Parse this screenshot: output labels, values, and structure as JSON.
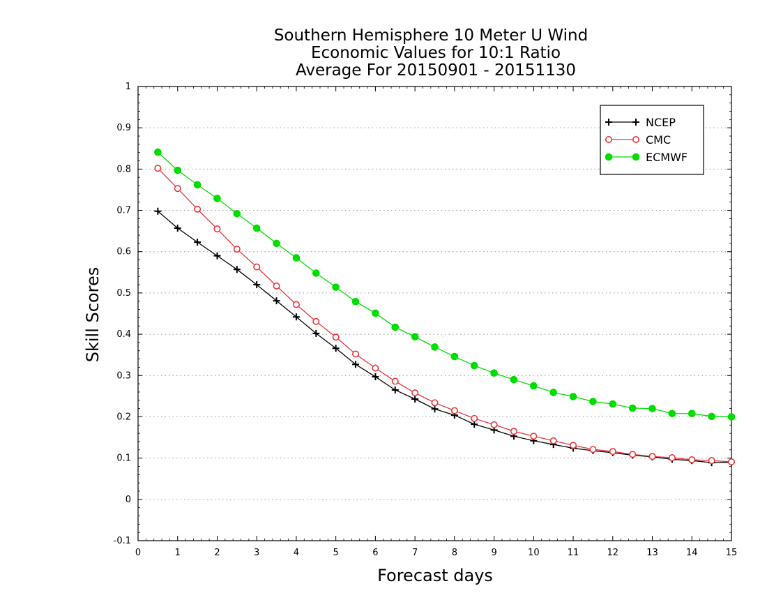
{
  "chart_data": {
    "type": "line",
    "title_lines": [
      "Southern Hemisphere 10 Meter U Wind",
      "Economic Values for 10:1 Ratio",
      "Average For 20150901 - 20151130"
    ],
    "xlabel": "Forecast days",
    "ylabel": "Skill Scores",
    "xlim": [
      0,
      15
    ],
    "ylim": [
      -0.1,
      1
    ],
    "x_ticks": [
      0,
      1,
      2,
      3,
      4,
      5,
      6,
      7,
      8,
      9,
      10,
      11,
      12,
      13,
      14,
      15
    ],
    "x_tick_labels": [
      "0",
      "1",
      "2",
      "3",
      "4",
      "5",
      "6",
      "7",
      "8",
      "9",
      "10",
      "11",
      "12",
      "13",
      "14",
      "15"
    ],
    "y_ticks": [
      -0.1,
      0,
      0.1,
      0.2,
      0.3,
      0.4,
      0.5,
      0.6,
      0.7,
      0.8,
      0.9,
      1
    ],
    "y_tick_labels": [
      "-0.1",
      "0",
      "0.1",
      "0.2",
      "0.3",
      "0.4",
      "0.5",
      "0.6",
      "0.7",
      "0.8",
      "0.9",
      "1"
    ],
    "grid": "horizontal dotted",
    "legend_position": "top-right",
    "x": [
      0.5,
      1,
      1.5,
      2,
      2.5,
      3,
      3.5,
      4,
      4.5,
      5,
      5.5,
      6,
      6.5,
      7,
      7.5,
      8,
      8.5,
      9,
      9.5,
      10,
      10.5,
      11,
      11.5,
      12,
      12.5,
      13,
      13.5,
      14,
      14.5,
      15
    ],
    "series": [
      {
        "name": "NCEP",
        "color": "#000000",
        "marker": "plus",
        "values": [
          0.698,
          0.657,
          0.623,
          0.59,
          0.557,
          0.52,
          0.481,
          0.442,
          0.402,
          0.366,
          0.327,
          0.297,
          0.265,
          0.243,
          0.219,
          0.204,
          0.182,
          0.168,
          0.153,
          0.142,
          0.133,
          0.124,
          0.118,
          0.113,
          0.107,
          0.103,
          0.097,
          0.094,
          0.089,
          0.09
        ]
      },
      {
        "name": "CMC",
        "color": "#e8353a",
        "marker": "open-circle",
        "values": [
          0.802,
          0.753,
          0.703,
          0.655,
          0.606,
          0.563,
          0.517,
          0.472,
          0.431,
          0.393,
          0.352,
          0.318,
          0.286,
          0.258,
          0.234,
          0.215,
          0.196,
          0.181,
          0.165,
          0.153,
          0.142,
          0.131,
          0.121,
          0.116,
          0.109,
          0.104,
          0.101,
          0.096,
          0.094,
          0.091
        ]
      },
      {
        "name": "ECMWF",
        "color": "#00dd00",
        "marker": "filled-circle",
        "values": [
          0.841,
          0.797,
          0.762,
          0.729,
          0.692,
          0.657,
          0.62,
          0.585,
          0.548,
          0.514,
          0.479,
          0.451,
          0.417,
          0.394,
          0.369,
          0.346,
          0.324,
          0.306,
          0.29,
          0.275,
          0.259,
          0.249,
          0.237,
          0.231,
          0.221,
          0.22,
          0.208,
          0.208,
          0.201,
          0.2
        ]
      }
    ]
  }
}
